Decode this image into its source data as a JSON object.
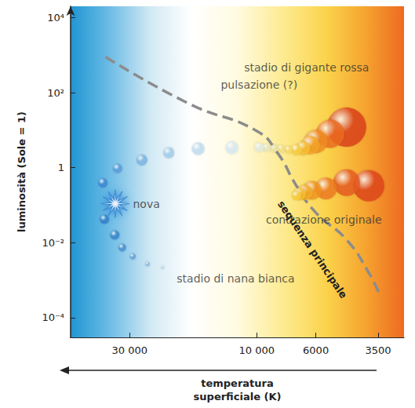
{
  "chart_data": {
    "type": "scatter",
    "log": true,
    "grid": false,
    "x_label": "temperatura\nsuperficiale (K)",
    "y_label": "luminosità (Sole = 1)",
    "xlim": [
      50000,
      2800
    ],
    "xticks": [
      {
        "value": 30000,
        "label": "30 000"
      },
      {
        "value": 10000,
        "label": "10 000"
      },
      6000,
      3500
    ],
    "ylim": [
      3e-05,
      20000
    ],
    "yticks": [
      {
        "value": 0.0001,
        "label": "10⁻⁴"
      },
      {
        "value": 0.01,
        "label": "10⁻²"
      },
      1,
      {
        "value": 100,
        "label": "10²"
      },
      {
        "value": 10000,
        "label": "10⁴"
      }
    ],
    "series": [
      {
        "name": "sequenza principale",
        "type": "line",
        "line_style": "dashed",
        "color": "#8c8c8c",
        "x": [
          37000,
          17900,
          10000,
          8300,
          7100,
          6000,
          4600,
          3800,
          3450
        ],
        "values": [
          900,
          50,
          9.5,
          2.3,
          0.33,
          0.063,
          0.012,
          0.0016,
          0.0004
        ]
      },
      {
        "type": "scatter",
        "marker": "circle",
        "x": [
          3800,
          4600,
          5500,
          6200,
          6600,
          6900,
          7100,
          4600,
          5300,
          6000,
          6300,
          6700,
          7100,
          7600,
          8100,
          8600,
          9200,
          9800,
          12400,
          16600,
          21400,
          27000,
          33300,
          37800,
          37300,
          34100,
          32000,
          29200,
          25700,
          22600
        ],
        "values": [
          0.33,
          0.4,
          0.28,
          0.25,
          0.22,
          0.2,
          0.18,
          12,
          8,
          5,
          4,
          3.3,
          3.0,
          3.0,
          3.2,
          3.3,
          3.4,
          3.5,
          3.4,
          3.2,
          2.5,
          1.6,
          0.95,
          0.39,
          0.042,
          0.016,
          0.0074,
          0.0043,
          0.0027,
          0.0022
        ],
        "sizes": [
          40,
          34,
          28,
          24,
          20,
          16,
          12,
          50,
          36,
          30,
          24,
          18,
          14,
          10,
          10,
          10,
          10,
          12,
          16,
          16,
          14,
          14,
          12,
          12,
          12,
          12,
          10,
          8,
          6,
          4
        ],
        "colors": [
          "#e0451c",
          "#e85c1e",
          "#ef7a20",
          "#f49522",
          "#f6ac26",
          "#f8bf2e",
          "#f9cf40",
          "#dc3f18",
          "#ee6c1e",
          "#f48d22",
          "#f7a628",
          "#f9bf32",
          "#fad044",
          "#f9dc62",
          "#f4e184",
          "#ece6a4",
          "#e6eac6",
          "#e4eee6",
          "#d8ebf4",
          "#c0def2",
          "#a2cdec",
          "#7cb6e4",
          "#5a9fdc",
          "#3e8ad4",
          "#3580cc",
          "#3a86cc",
          "#4a90d0",
          "#68a3d8",
          "#8ebbe2",
          "#b6d3ea"
        ]
      },
      {
        "name": "nova",
        "type": "scatter",
        "marker": "star",
        "color": "#2a7fd0",
        "x": [
          34000
        ],
        "values": [
          0.11
        ]
      }
    ],
    "annotations": [
      {
        "text": "stadio di gigante rossa",
        "x": 6500,
        "y": 460
      },
      {
        "text": "pulsazione (?)",
        "x": 9800,
        "y": 160
      },
      {
        "text": "contrazione originale",
        "x": 5600,
        "y": 0.042
      },
      {
        "text": "stadio di nana bianca",
        "x": 12000,
        "y": 0.0011
      }
    ]
  }
}
